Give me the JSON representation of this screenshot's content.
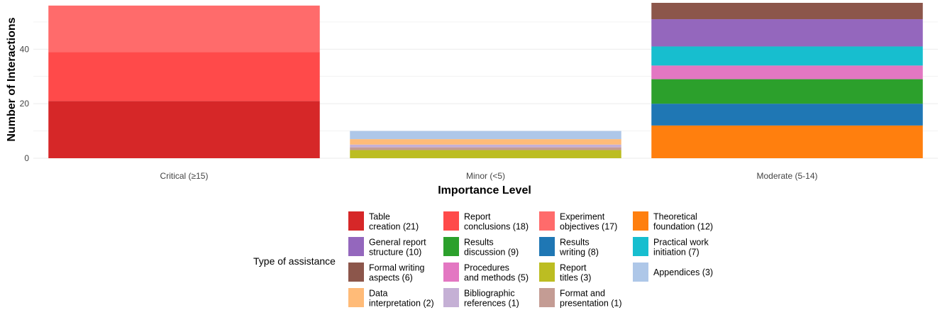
{
  "chart_data": {
    "type": "bar",
    "stacked": true,
    "xlabel": "Importance Level",
    "ylabel": "Number of Interactions",
    "ylim": [
      0,
      57
    ],
    "yticks": [
      0,
      20,
      40
    ],
    "grid": true,
    "categories": [
      "Critical (≥15)",
      "Minor (<5)",
      "Moderate (5-14)"
    ],
    "legend": {
      "title": "Type of assistance",
      "placement": "bottom"
    },
    "series": [
      {
        "name": "Table creation (21)",
        "label_lines": [
          "Table",
          "creation (21)"
        ],
        "color": "#d62728",
        "values": [
          21,
          0,
          0
        ]
      },
      {
        "name": "Report conclusions (18)",
        "label_lines": [
          "Report",
          "conclusions (18)"
        ],
        "color": "#ff4a4a",
        "values": [
          18,
          0,
          0
        ]
      },
      {
        "name": "Experiment objectives (17)",
        "label_lines": [
          "Experiment",
          "objectives (17)"
        ],
        "color": "#ff6b6b",
        "values": [
          17,
          0,
          0
        ]
      },
      {
        "name": "Theoretical foundation (12)",
        "label_lines": [
          "Theoretical",
          "foundation (12)"
        ],
        "color": "#ff7f0e",
        "values": [
          0,
          0,
          12
        ]
      },
      {
        "name": "General report structure (10)",
        "label_lines": [
          "General report",
          "structure (10)"
        ],
        "color": "#9467bd",
        "values": [
          0,
          0,
          10
        ]
      },
      {
        "name": "Results discussion (9)",
        "label_lines": [
          "Results",
          "discussion (9)"
        ],
        "color": "#2ca02c",
        "values": [
          0,
          0,
          9
        ]
      },
      {
        "name": "Results writing (8)",
        "label_lines": [
          "Results",
          "writing (8)"
        ],
        "color": "#1f77b4",
        "values": [
          0,
          0,
          8
        ]
      },
      {
        "name": "Practical work initiation (7)",
        "label_lines": [
          "Practical work",
          "initiation (7)"
        ],
        "color": "#17becf",
        "values": [
          0,
          0,
          7
        ]
      },
      {
        "name": "Formal writing aspects (6)",
        "label_lines": [
          "Formal writing",
          "aspects (6)"
        ],
        "color": "#8c564b",
        "values": [
          0,
          0,
          6
        ]
      },
      {
        "name": "Procedures and methods (5)",
        "label_lines": [
          "Procedures",
          "and methods (5)"
        ],
        "color": "#e377c2",
        "values": [
          0,
          0,
          5
        ]
      },
      {
        "name": "Report titles (3)",
        "label_lines": [
          "Report",
          "titles (3)"
        ],
        "color": "#bcbd22",
        "values": [
          0,
          3,
          0
        ]
      },
      {
        "name": "Appendices (3)",
        "label_lines": [
          "Appendices (3)"
        ],
        "color": "#aec7e8",
        "values": [
          0,
          3,
          0
        ]
      },
      {
        "name": "Data interpretation (2)",
        "label_lines": [
          "Data",
          "interpretation (2)"
        ],
        "color": "#ffbb78",
        "values": [
          0,
          2,
          0
        ]
      },
      {
        "name": "Bibliographic references (1)",
        "label_lines": [
          "Bibliographic",
          "references (1)"
        ],
        "color": "#c5b0d5",
        "values": [
          0,
          1,
          0
        ]
      },
      {
        "name": "Format and presentation (1)",
        "label_lines": [
          "Format and",
          "presentation (1)"
        ],
        "color": "#c49c94",
        "values": [
          0,
          1,
          0
        ]
      }
    ],
    "stack_order": [
      [
        "Table creation (21)",
        "Report conclusions (18)",
        "Experiment objectives (17)"
      ],
      [
        "Report titles (3)",
        "Format and presentation (1)",
        "Bibliographic references (1)",
        "Data interpretation (2)",
        "Appendices (3)"
      ],
      [
        "Theoretical foundation (12)",
        "Results writing (8)",
        "Results discussion (9)",
        "Procedures and methods (5)",
        "Practical work initiation (7)",
        "General report structure (10)",
        "Formal writing aspects (6)"
      ]
    ],
    "legend_rows": [
      [
        "Table creation (21)",
        "Report conclusions (18)",
        "Experiment objectives (17)",
        "Theoretical foundation (12)"
      ],
      [
        "General report structure (10)",
        "Results discussion (9)",
        "Results writing (8)",
        "Practical work initiation (7)"
      ],
      [
        "Formal writing aspects (6)",
        "Procedures and methods (5)",
        "Report titles (3)",
        "Appendices (3)"
      ],
      [
        "Data interpretation (2)",
        "Bibliographic references (1)",
        "Format and presentation (1)"
      ]
    ]
  }
}
